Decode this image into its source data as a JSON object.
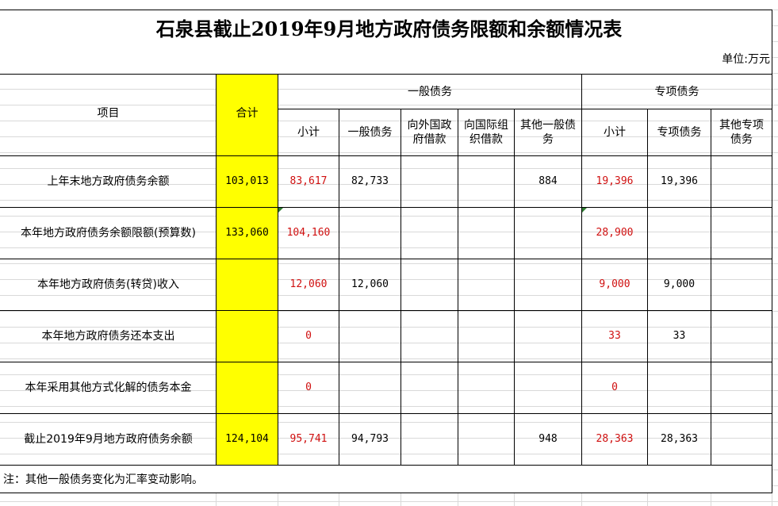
{
  "title": "石泉县截止2019年9月地方政府债务限额和余额情况表",
  "unit": "单位:万元",
  "headers": {
    "item": "项目",
    "total": "合计",
    "general_group": "一般债务",
    "special_group": "专项债务",
    "general_cols": [
      "小计",
      "一般债务",
      "向外国政府借款",
      "向国际组织借款",
      "其他一般债务"
    ],
    "special_cols": [
      "小计",
      "专项债务",
      "其他专项债务"
    ]
  },
  "rows": [
    {
      "item": "上年末地方政府债务余额",
      "total": "103,013",
      "g_sub": "83,617",
      "g_debt": "82,733",
      "g_foreign": "",
      "g_intl": "",
      "g_other": "884",
      "s_sub": "19,396",
      "s_debt": "19,396",
      "s_other": ""
    },
    {
      "item": "本年地方政府债务余额限额(预算数)",
      "total": "133,060",
      "g_sub": "104,160",
      "g_debt": "",
      "g_foreign": "",
      "g_intl": "",
      "g_other": "",
      "s_sub": "28,900",
      "s_debt": "",
      "s_other": ""
    },
    {
      "item": "本年地方政府债务(转贷)收入",
      "total": "",
      "g_sub": "12,060",
      "g_debt": "12,060",
      "g_foreign": "",
      "g_intl": "",
      "g_other": "",
      "s_sub": "9,000",
      "s_debt": "9,000",
      "s_other": ""
    },
    {
      "item": "本年地方政府债务还本支出",
      "total": "",
      "g_sub": "0",
      "g_debt": "",
      "g_foreign": "",
      "g_intl": "",
      "g_other": "",
      "s_sub": "33",
      "s_debt": "33",
      "s_other": ""
    },
    {
      "item": "本年采用其他方式化解的债务本金",
      "total": "",
      "g_sub": "0",
      "g_debt": "",
      "g_foreign": "",
      "g_intl": "",
      "g_other": "",
      "s_sub": "0",
      "s_debt": "",
      "s_other": ""
    },
    {
      "item": "截止2019年9月地方政府债务余额",
      "total": "124,104",
      "g_sub": "95,741",
      "g_debt": "94,793",
      "g_foreign": "",
      "g_intl": "",
      "g_other": "948",
      "s_sub": "28,363",
      "s_debt": "28,363",
      "s_other": ""
    }
  ],
  "note": "注：其他一般债务变化为汇率变动影响。",
  "colors": {
    "highlight": "#ffff00",
    "red_text": "#d01010"
  }
}
